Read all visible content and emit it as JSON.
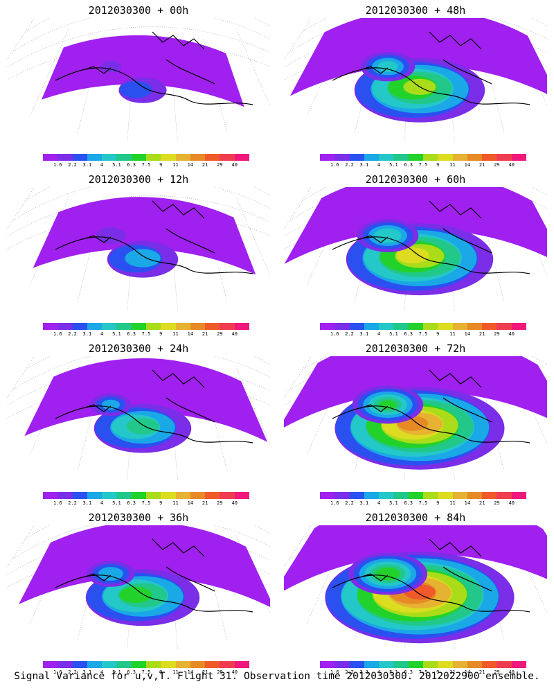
{
  "colors": {
    "scale": [
      "#a020f0",
      "#7a2ee8",
      "#2a50f0",
      "#1aa8e6",
      "#24c8c8",
      "#22c88a",
      "#22d22a",
      "#aadc1a",
      "#dcdc20",
      "#e6b232",
      "#e68a26",
      "#f05a2a",
      "#f03c50",
      "#f0187a"
    ]
  },
  "colorbar_ticks": [
    "1.6",
    "2.2",
    "3.1",
    "4",
    "5.1",
    "6.3",
    "7.5",
    "9",
    "11",
    "14",
    "21",
    "29",
    "40"
  ],
  "panels": [
    {
      "title": "2012030300 + 00h",
      "level": 0.05
    },
    {
      "title": "2012030300 + 48h",
      "level": 0.55
    },
    {
      "title": "2012030300 + 12h",
      "level": 0.2
    },
    {
      "title": "2012030300 + 60h",
      "level": 0.65
    },
    {
      "title": "2012030300 + 24h",
      "level": 0.35
    },
    {
      "title": "2012030300 + 72h",
      "level": 0.78
    },
    {
      "title": "2012030300 + 36h",
      "level": 0.45
    },
    {
      "title": "2012030300 + 84h",
      "level": 0.9
    }
  ],
  "footer": "Signal Variance for u,v,T. Flight 31. Observation time 2012030300. 2012022900 ensemble."
}
